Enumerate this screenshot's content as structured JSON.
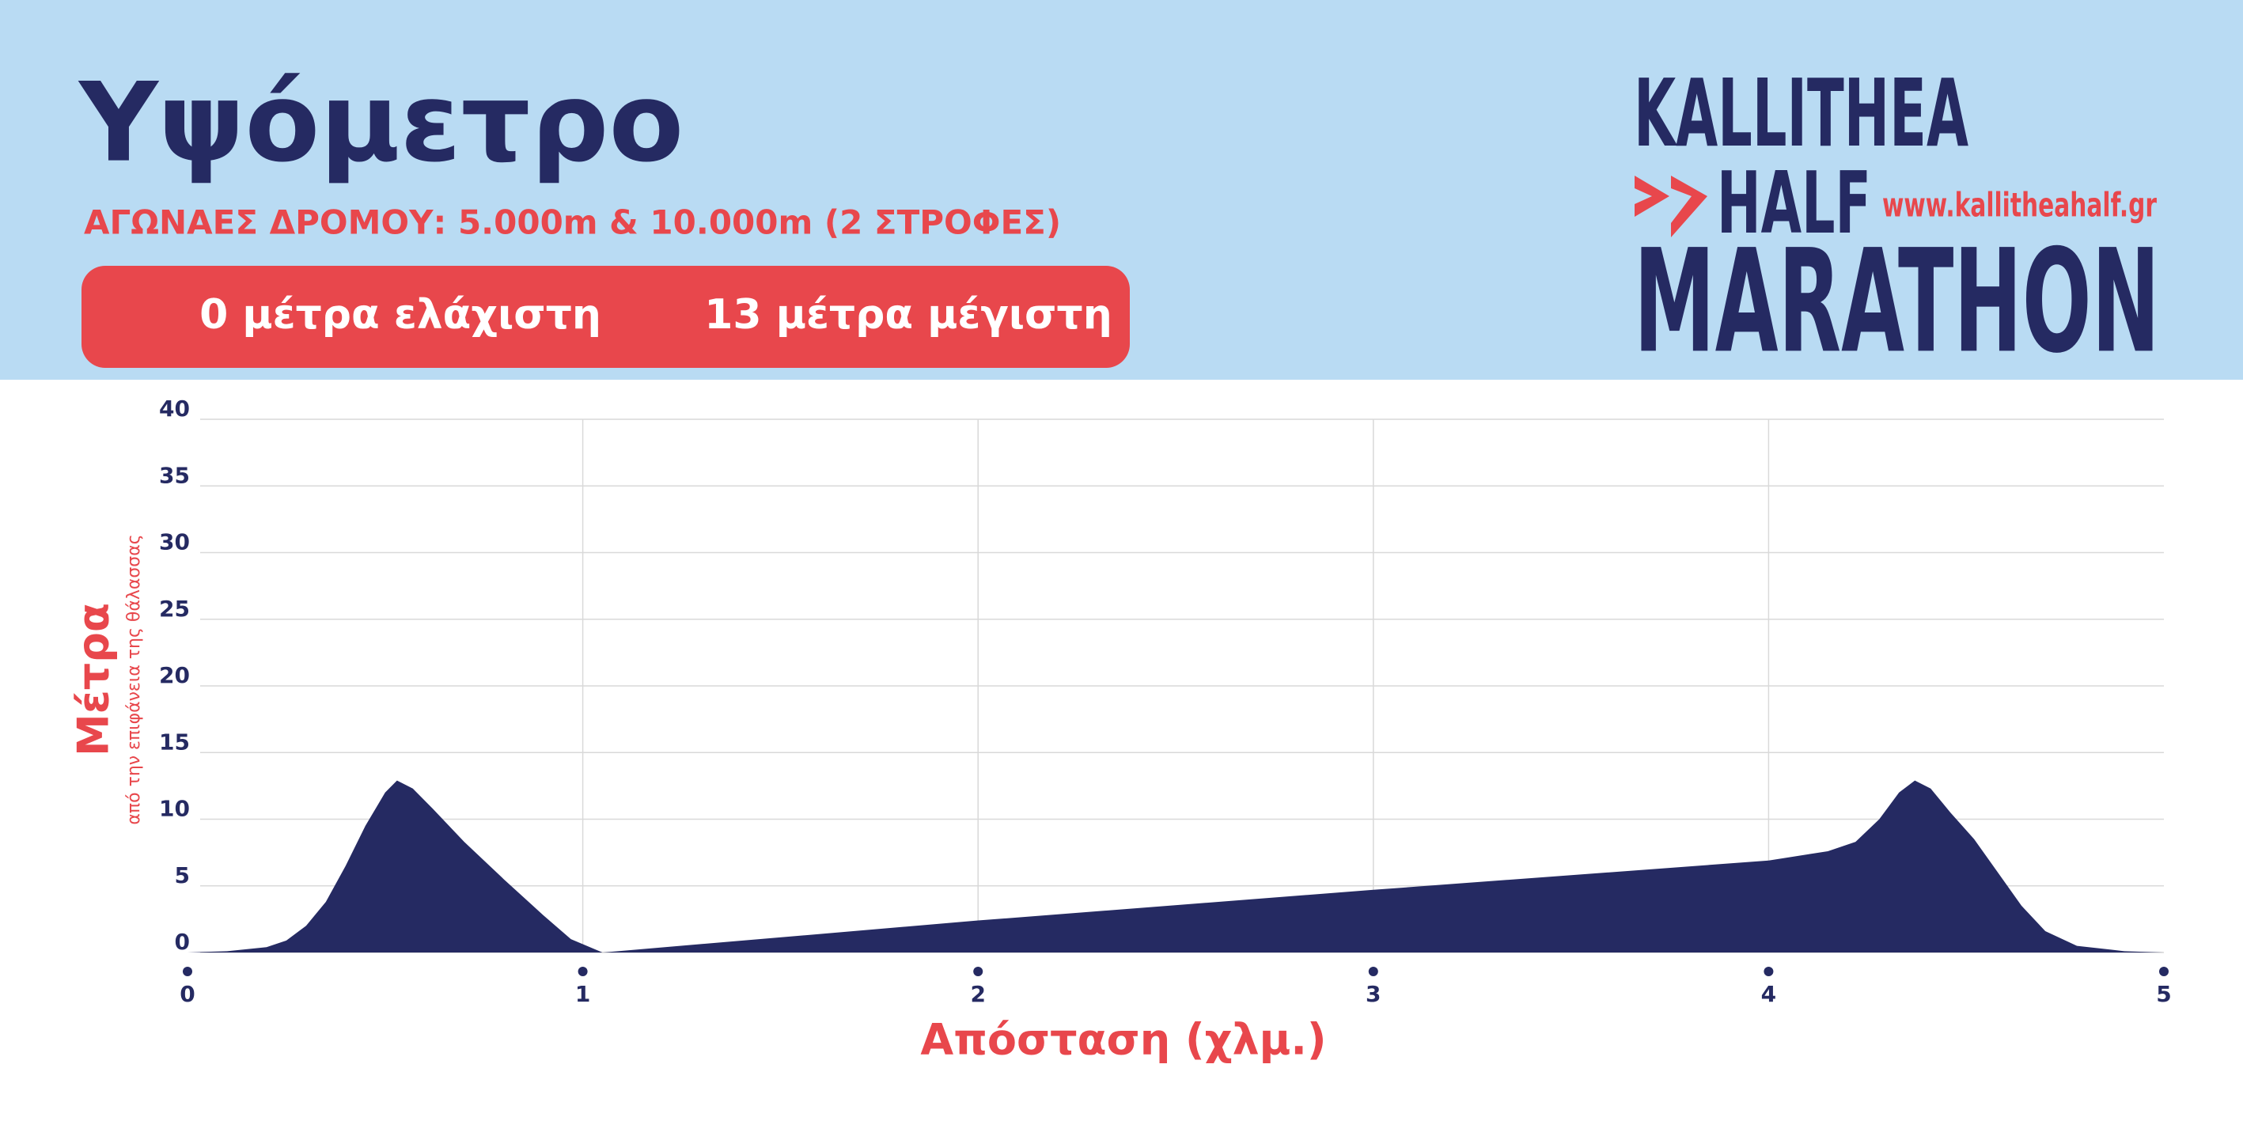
{
  "chart_data": {
    "type": "area",
    "title": "Υψόμετρο",
    "subtitle": "ΑΓΩΝΑΕΣ ΔΡΟΜΟΥ: 5.000m & 10.000m (2 ΣΤΡΟΦΕΣ)",
    "min_label": "0 μέτρα ελάχιστη",
    "max_label": "13 μέτρα μέγιστη",
    "y_label": "Μέτρα",
    "y_sublabel": "από την επιφάνεια της θάλασσας",
    "x_label": "Απόσταση (χλμ.)",
    "color": "#252a62",
    "x": [
      0,
      0.1,
      0.2,
      0.25,
      0.3,
      0.35,
      0.4,
      0.45,
      0.5,
      0.53,
      0.57,
      0.62,
      0.7,
      0.8,
      0.9,
      0.97,
      1.05,
      2,
      3,
      4,
      4.15,
      4.22,
      4.28,
      4.33,
      4.37,
      4.41,
      4.46,
      4.52,
      4.58,
      4.64,
      4.7,
      4.78,
      4.9,
      5
    ],
    "values": [
      0,
      0.1,
      0.4,
      0.9,
      2,
      3.8,
      6.5,
      9.5,
      12,
      12.9,
      12.3,
      10.8,
      8.3,
      5.5,
      2.8,
      1,
      0,
      2.4,
      4.7,
      6.9,
      7.6,
      8.3,
      10,
      12,
      12.9,
      12.3,
      10.5,
      8.5,
      6,
      3.5,
      1.6,
      0.5,
      0.1,
      0
    ],
    "xlim": [
      0,
      5
    ],
    "ylim": [
      0,
      40
    ],
    "xticks": [
      0,
      1,
      2,
      3,
      4,
      5
    ],
    "yticks": [
      0,
      5,
      10,
      15,
      20,
      25,
      30,
      35,
      40
    ],
    "grid": true
  },
  "logo": {
    "line1": "KALLITHEA",
    "line2": "HALF",
    "line3": "MARATHON",
    "url": "www.kallitheahalf.gr"
  }
}
